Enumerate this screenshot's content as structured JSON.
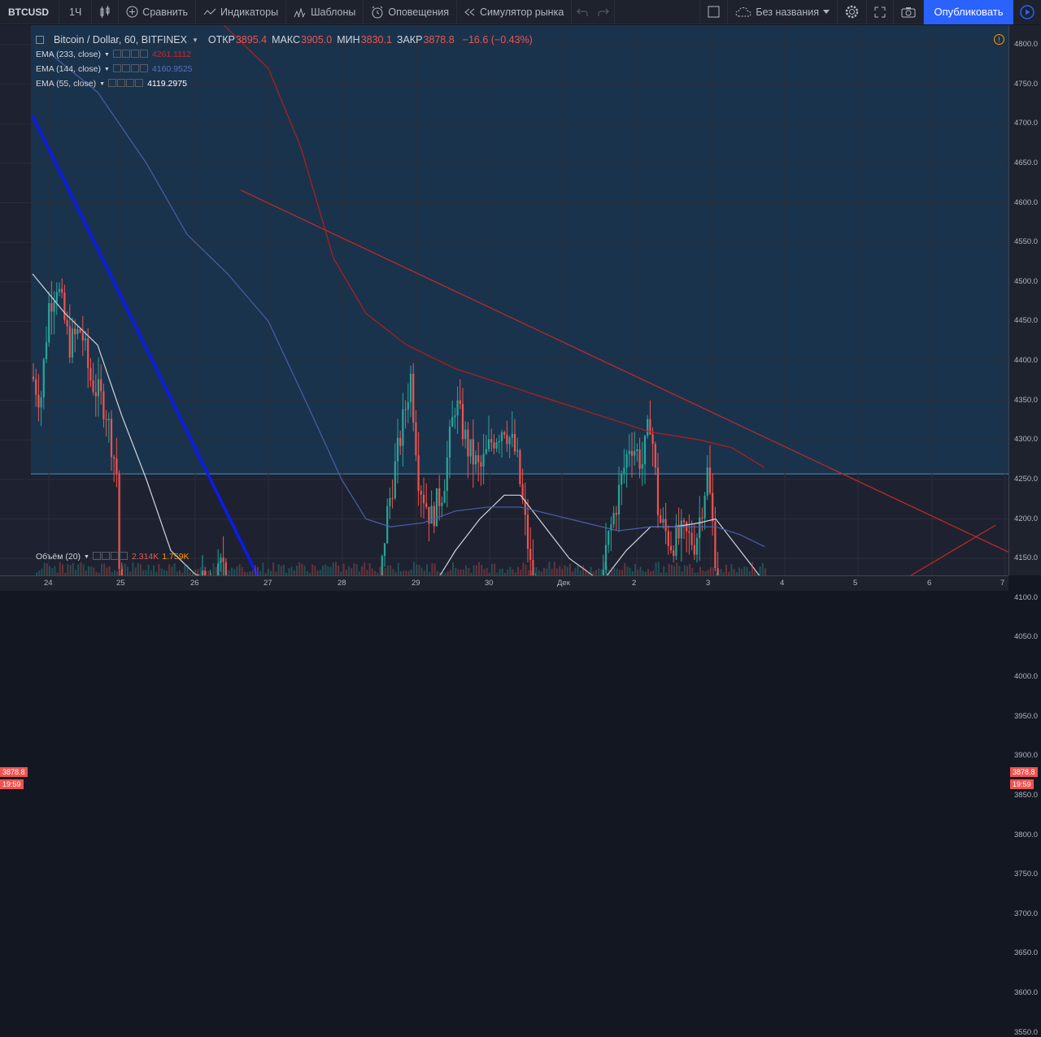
{
  "toolbar": {
    "symbol": "BTCUSD",
    "interval": "1Ч",
    "compare": "Сравнить",
    "indicators": "Индикаторы",
    "templates": "Шаблоны",
    "alerts": "Оповещения",
    "replay": "Симулятор рынка",
    "layout_name": "Без названия",
    "publish": "Опубликовать"
  },
  "legend": {
    "title": "Bitcoin / Dollar, 60, BITFINEX",
    "open_label": "ОТКР",
    "open": "3895.4",
    "high_label": "МАКС",
    "high": "3905.0",
    "low_label": "МИН",
    "low": "3830.1",
    "close_label": "ЗАКР",
    "close": "3878.8",
    "change": "−16.6 (−0.43%)",
    "ema233": "EMA (233, close)",
    "ema233_val": "4261.1112",
    "ema144": "EMA (144, close)",
    "ema144_val": "4160.9525",
    "ema55": "EMA (55, close)",
    "ema55_val": "4119.2975",
    "volume": "Объём (20)",
    "vol1": "2.314K",
    "vol2": "1.759K"
  },
  "price_axis": {
    "ticks": [
      "4800.0",
      "4750.0",
      "4700.0",
      "4650.0",
      "4600.0",
      "4550.0",
      "4500.0",
      "4450.0",
      "4400.0",
      "4350.0",
      "4300.0",
      "4250.0",
      "4200.0",
      "4150.0",
      "4100.0",
      "4050.0",
      "4000.0",
      "3950.0",
      "3900.0",
      "3850.0",
      "3800.0",
      "3750.0",
      "3700.0",
      "3650.0",
      "3600.0",
      "3550.0"
    ],
    "last_price": "3878.8",
    "countdown": "19:59"
  },
  "time_axis": {
    "ticks": [
      "24",
      "25",
      "26",
      "27",
      "28",
      "29",
      "30",
      "Дек",
      "2",
      "3",
      "4",
      "5",
      "6",
      "7"
    ]
  },
  "colors": {
    "bull": "#26a69a",
    "bear": "#ef5350",
    "blue_line": "#0c1bf0",
    "red_line": "#c62828",
    "ema55": "#d1d4dc",
    "ema144": "#4a5ea8",
    "ema233": "#b71c1c",
    "accent": "#2962ff"
  }
}
